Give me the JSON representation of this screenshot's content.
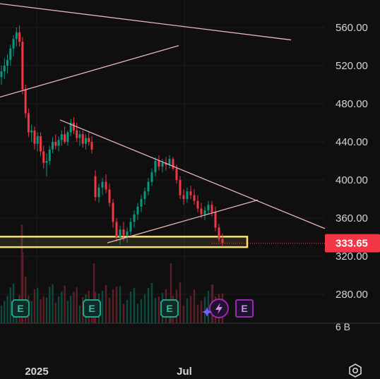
{
  "chart_data": {
    "type": "candlestick",
    "y_axis": {
      "ticks": [
        "560.00",
        "520.00",
        "480.00",
        "440.00",
        "400.00",
        "360.00",
        "320.00",
        "280.00"
      ],
      "range": [
        262,
        582
      ]
    },
    "x_axis": {
      "ticks": [
        "2025",
        "Jul"
      ]
    },
    "last_price": "333.65",
    "last_price_value": 333.65,
    "volume_label": "6 B",
    "earnings_badges": [
      "E",
      "E",
      "E",
      "E"
    ],
    "candles": [
      {
        "o": 508,
        "h": 520,
        "l": 500,
        "c": 514
      },
      {
        "o": 514,
        "h": 528,
        "l": 506,
        "c": 520
      },
      {
        "o": 520,
        "h": 532,
        "l": 512,
        "c": 526
      },
      {
        "o": 526,
        "h": 542,
        "l": 520,
        "c": 538
      },
      {
        "o": 538,
        "h": 552,
        "l": 530,
        "c": 548
      },
      {
        "o": 548,
        "h": 560,
        "l": 540,
        "c": 555
      },
      {
        "o": 555,
        "h": 562,
        "l": 540,
        "c": 545
      },
      {
        "o": 545,
        "h": 550,
        "l": 490,
        "c": 495
      },
      {
        "o": 495,
        "h": 500,
        "l": 465,
        "c": 470
      },
      {
        "o": 470,
        "h": 475,
        "l": 445,
        "c": 450
      },
      {
        "o": 450,
        "h": 458,
        "l": 440,
        "c": 452
      },
      {
        "o": 452,
        "h": 456,
        "l": 432,
        "c": 438
      },
      {
        "o": 438,
        "h": 450,
        "l": 430,
        "c": 446
      },
      {
        "o": 446,
        "h": 450,
        "l": 425,
        "c": 430
      },
      {
        "o": 430,
        "h": 436,
        "l": 412,
        "c": 418
      },
      {
        "o": 418,
        "h": 428,
        "l": 404,
        "c": 420
      },
      {
        "o": 420,
        "h": 436,
        "l": 416,
        "c": 432
      },
      {
        "o": 432,
        "h": 445,
        "l": 428,
        "c": 440
      },
      {
        "o": 440,
        "h": 448,
        "l": 432,
        "c": 436
      },
      {
        "o": 436,
        "h": 446,
        "l": 430,
        "c": 442
      },
      {
        "o": 442,
        "h": 452,
        "l": 436,
        "c": 448
      },
      {
        "o": 448,
        "h": 456,
        "l": 438,
        "c": 440
      },
      {
        "o": 440,
        "h": 452,
        "l": 436,
        "c": 450
      },
      {
        "o": 450,
        "h": 464,
        "l": 446,
        "c": 460
      },
      {
        "o": 460,
        "h": 466,
        "l": 448,
        "c": 452
      },
      {
        "o": 452,
        "h": 460,
        "l": 440,
        "c": 444
      },
      {
        "o": 444,
        "h": 452,
        "l": 436,
        "c": 448
      },
      {
        "o": 448,
        "h": 452,
        "l": 434,
        "c": 438
      },
      {
        "o": 438,
        "h": 448,
        "l": 432,
        "c": 444
      },
      {
        "o": 444,
        "h": 450,
        "l": 436,
        "c": 440
      },
      {
        "o": 440,
        "h": 446,
        "l": 428,
        "c": 432
      },
      {
        "o": 404,
        "h": 410,
        "l": 378,
        "c": 382
      },
      {
        "o": 382,
        "h": 396,
        "l": 376,
        "c": 392
      },
      {
        "o": 392,
        "h": 402,
        "l": 384,
        "c": 398
      },
      {
        "o": 398,
        "h": 406,
        "l": 386,
        "c": 390
      },
      {
        "o": 390,
        "h": 396,
        "l": 372,
        "c": 376
      },
      {
        "o": 376,
        "h": 380,
        "l": 350,
        "c": 356
      },
      {
        "o": 356,
        "h": 360,
        "l": 335,
        "c": 340
      },
      {
        "o": 340,
        "h": 352,
        "l": 332,
        "c": 348
      },
      {
        "o": 348,
        "h": 356,
        "l": 336,
        "c": 342
      },
      {
        "o": 342,
        "h": 350,
        "l": 334,
        "c": 346
      },
      {
        "o": 346,
        "h": 360,
        "l": 342,
        "c": 356
      },
      {
        "o": 356,
        "h": 368,
        "l": 350,
        "c": 364
      },
      {
        "o": 364,
        "h": 376,
        "l": 358,
        "c": 372
      },
      {
        "o": 372,
        "h": 384,
        "l": 366,
        "c": 380
      },
      {
        "o": 380,
        "h": 392,
        "l": 374,
        "c": 388
      },
      {
        "o": 388,
        "h": 402,
        "l": 384,
        "c": 398
      },
      {
        "o": 398,
        "h": 412,
        "l": 394,
        "c": 408
      },
      {
        "o": 408,
        "h": 424,
        "l": 404,
        "c": 420
      },
      {
        "o": 420,
        "h": 426,
        "l": 410,
        "c": 414
      },
      {
        "o": 414,
        "h": 422,
        "l": 408,
        "c": 418
      },
      {
        "o": 418,
        "h": 424,
        "l": 410,
        "c": 416
      },
      {
        "o": 416,
        "h": 426,
        "l": 412,
        "c": 422
      },
      {
        "o": 422,
        "h": 424,
        "l": 410,
        "c": 412
      },
      {
        "o": 412,
        "h": 416,
        "l": 396,
        "c": 400
      },
      {
        "o": 400,
        "h": 404,
        "l": 380,
        "c": 384
      },
      {
        "o": 384,
        "h": 390,
        "l": 374,
        "c": 380
      },
      {
        "o": 380,
        "h": 392,
        "l": 376,
        "c": 388
      },
      {
        "o": 388,
        "h": 394,
        "l": 380,
        "c": 384
      },
      {
        "o": 384,
        "h": 390,
        "l": 374,
        "c": 378
      },
      {
        "o": 378,
        "h": 384,
        "l": 366,
        "c": 370
      },
      {
        "o": 370,
        "h": 376,
        "l": 360,
        "c": 364
      },
      {
        "o": 364,
        "h": 372,
        "l": 358,
        "c": 368
      },
      {
        "o": 368,
        "h": 378,
        "l": 364,
        "c": 374
      },
      {
        "o": 374,
        "h": 378,
        "l": 362,
        "c": 366
      },
      {
        "o": 366,
        "h": 372,
        "l": 346,
        "c": 350
      },
      {
        "o": 350,
        "h": 354,
        "l": 335,
        "c": 338
      },
      {
        "o": 338,
        "h": 344,
        "l": 330,
        "c": 334
      }
    ],
    "trendlines": [
      {
        "x1": 0,
        "y1": 585,
        "x2": 412,
        "y2": 547
      },
      {
        "x1": 0,
        "y1": 487,
        "x2": 253,
        "y2": 541
      },
      {
        "x1": 85,
        "y1": 463,
        "x2": 460,
        "y2": 349
      },
      {
        "x1": 152,
        "y1": 334,
        "x2": 365,
        "y2": 379
      }
    ],
    "support_zone": [
      329.5,
      340.5
    ]
  }
}
